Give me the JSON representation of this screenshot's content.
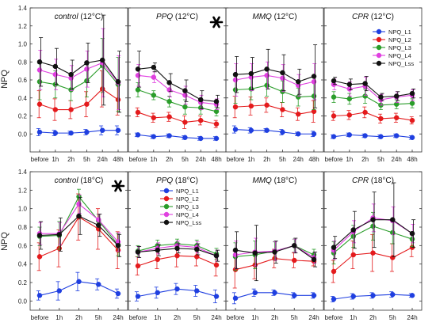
{
  "figure": {
    "ylabel": "NPQ",
    "legend_names": [
      "NPQ_L1",
      "NPQ_L2",
      "NPQ_L3",
      "NPQ_L4",
      "NPQ_Lss"
    ],
    "colors": {
      "NPQ_L1": "#1f3fe0",
      "NPQ_L2": "#e41a1c",
      "NPQ_L3": "#2a9d2a",
      "NPQ_L4": "#e040e0",
      "NPQ_Lss": "#111111"
    }
  },
  "chart_data": [
    {
      "type": "line",
      "row": 0,
      "col": 0,
      "title": "control",
      "title_italic": true,
      "title_suffix": " (12°C)",
      "asterisk": false,
      "categories": [
        "before",
        "1h",
        "2h",
        "5h",
        "24h",
        "48h"
      ],
      "yticks": [
        "0.0",
        "0.2",
        "0.4",
        "0.6",
        "0.8",
        "1.0",
        "1.2",
        "1.4"
      ],
      "ylim": [
        -0.2,
        1.4
      ],
      "legend": false,
      "series": [
        {
          "name": "NPQ_L1",
          "values": [
            0.02,
            0.01,
            0.01,
            0.02,
            0.04,
            0.04
          ],
          "errors": [
            0.04,
            0.03,
            0.02,
            0.03,
            0.05,
            0.05
          ]
        },
        {
          "name": "NPQ_L2",
          "values": [
            0.33,
            0.27,
            0.27,
            0.33,
            0.5,
            0.38
          ],
          "errors": [
            0.15,
            0.12,
            0.1,
            0.14,
            0.2,
            0.17
          ]
        },
        {
          "name": "NPQ_L3",
          "values": [
            0.58,
            0.55,
            0.49,
            0.59,
            0.76,
            0.55
          ],
          "errors": [
            0.2,
            0.15,
            0.12,
            0.18,
            0.3,
            0.3
          ]
        },
        {
          "name": "NPQ_L4",
          "values": [
            0.71,
            0.66,
            0.62,
            0.72,
            0.79,
            0.57
          ],
          "errors": [
            0.22,
            0.17,
            0.14,
            0.2,
            0.38,
            0.3
          ]
        },
        {
          "name": "NPQ_Lss",
          "values": [
            0.8,
            0.75,
            0.66,
            0.79,
            0.82,
            0.58
          ],
          "errors": [
            0.27,
            0.2,
            0.16,
            0.22,
            0.5,
            0.34
          ]
        }
      ]
    },
    {
      "type": "line",
      "row": 0,
      "col": 1,
      "title": "PPQ",
      "title_italic": true,
      "title_suffix": " (12°C)",
      "asterisk": true,
      "categories": [
        "before",
        "1h",
        "2h",
        "5h",
        "24h",
        "48h"
      ],
      "yticks": [
        "0.0",
        "0.2",
        "0.4",
        "0.6",
        "0.8",
        "1.0",
        "1.2",
        "1.4"
      ],
      "ylim": [
        -0.2,
        1.4
      ],
      "legend": false,
      "series": [
        {
          "name": "NPQ_L1",
          "values": [
            -0.01,
            -0.03,
            -0.02,
            -0.04,
            -0.05,
            -0.05
          ],
          "errors": [
            0.02,
            0.02,
            0.02,
            0.02,
            0.02,
            0.02
          ]
        },
        {
          "name": "NPQ_L2",
          "values": [
            0.24,
            0.18,
            0.19,
            0.13,
            0.15,
            0.11
          ],
          "errors": [
            0.05,
            0.05,
            0.05,
            0.07,
            0.05,
            0.04
          ]
        },
        {
          "name": "NPQ_L3",
          "values": [
            0.49,
            0.43,
            0.36,
            0.3,
            0.29,
            0.25
          ],
          "errors": [
            0.08,
            0.05,
            0.06,
            0.08,
            0.07,
            0.05
          ]
        },
        {
          "name": "NPQ_L4",
          "values": [
            0.65,
            0.63,
            0.49,
            0.43,
            0.35,
            0.33
          ],
          "errors": [
            0.12,
            0.06,
            0.08,
            0.1,
            0.08,
            0.06
          ]
        },
        {
          "name": "NPQ_Lss",
          "values": [
            0.72,
            0.74,
            0.57,
            0.48,
            0.38,
            0.36
          ],
          "errors": [
            0.2,
            0.05,
            0.1,
            0.12,
            0.1,
            0.07
          ]
        }
      ]
    },
    {
      "type": "line",
      "row": 0,
      "col": 2,
      "title": "MMQ",
      "title_italic": true,
      "title_suffix": " (12°C)",
      "asterisk": false,
      "categories": [
        "before",
        "1h",
        "2h",
        "5h",
        "24h",
        "48h"
      ],
      "yticks": [
        "0.0",
        "0.2",
        "0.4",
        "0.6",
        "0.8",
        "1.0",
        "1.2",
        "1.4"
      ],
      "ylim": [
        -0.2,
        1.4
      ],
      "legend": false,
      "series": [
        {
          "name": "NPQ_L1",
          "values": [
            0.05,
            0.04,
            0.04,
            0.02,
            0.0,
            0.0
          ],
          "errors": [
            0.04,
            0.03,
            0.02,
            0.03,
            0.02,
            0.03
          ]
        },
        {
          "name": "NPQ_L2",
          "values": [
            0.3,
            0.31,
            0.32,
            0.27,
            0.22,
            0.25
          ],
          "errors": [
            0.12,
            0.1,
            0.08,
            0.08,
            0.07,
            0.12
          ]
        },
        {
          "name": "NPQ_L3",
          "values": [
            0.49,
            0.5,
            0.54,
            0.47,
            0.41,
            0.42
          ],
          "errors": [
            0.15,
            0.12,
            0.12,
            0.12,
            0.1,
            0.15
          ]
        },
        {
          "name": "NPQ_L4",
          "values": [
            0.6,
            0.63,
            0.65,
            0.62,
            0.54,
            0.58
          ],
          "errors": [
            0.18,
            0.15,
            0.15,
            0.15,
            0.12,
            0.2
          ]
        },
        {
          "name": "NPQ_Lss",
          "values": [
            0.66,
            0.67,
            0.72,
            0.68,
            0.58,
            0.64
          ],
          "errors": [
            0.2,
            0.18,
            0.22,
            0.2,
            0.14,
            0.35
          ]
        }
      ]
    },
    {
      "type": "line",
      "row": 0,
      "col": 3,
      "title": "CPR",
      "title_italic": true,
      "title_suffix": " (12°C)",
      "asterisk": false,
      "categories": [
        "before",
        "1h",
        "2h",
        "5h",
        "24h",
        "48h"
      ],
      "yticks": [
        "0.0",
        "0.2",
        "0.4",
        "0.6",
        "0.8",
        "1.0",
        "1.2",
        "1.4"
      ],
      "ylim": [
        -0.2,
        1.4
      ],
      "legend": true,
      "series": [
        {
          "name": "NPQ_L1",
          "values": [
            -0.03,
            -0.01,
            -0.02,
            -0.03,
            -0.02,
            -0.04
          ],
          "errors": [
            0.02,
            0.02,
            0.02,
            0.02,
            0.02,
            0.02
          ]
        },
        {
          "name": "NPQ_L2",
          "values": [
            0.2,
            0.21,
            0.24,
            0.17,
            0.18,
            0.15
          ],
          "errors": [
            0.05,
            0.05,
            0.06,
            0.05,
            0.05,
            0.04
          ]
        },
        {
          "name": "NPQ_L3",
          "values": [
            0.41,
            0.39,
            0.42,
            0.32,
            0.33,
            0.34
          ],
          "errors": [
            0.06,
            0.06,
            0.08,
            0.05,
            0.05,
            0.05
          ]
        },
        {
          "name": "NPQ_L4",
          "values": [
            0.55,
            0.5,
            0.53,
            0.38,
            0.41,
            0.43
          ],
          "errors": [
            0.06,
            0.08,
            0.1,
            0.06,
            0.06,
            0.06
          ]
        },
        {
          "name": "NPQ_Lss",
          "values": [
            0.59,
            0.55,
            0.56,
            0.41,
            0.42,
            0.45
          ],
          "errors": [
            0.04,
            0.06,
            0.08,
            0.04,
            0.05,
            0.05
          ]
        }
      ]
    },
    {
      "type": "line",
      "row": 1,
      "col": 0,
      "title": "control",
      "title_italic": true,
      "title_suffix": " (18°C)",
      "asterisk": true,
      "categories": [
        "before",
        "1h",
        "2h",
        "5h",
        "24h"
      ],
      "yticks": [
        "0.0",
        "0.2",
        "0.4",
        "0.6",
        "0.8",
        "1.0",
        "1.2",
        "1.4"
      ],
      "ylim": [
        -0.1,
        1.4
      ],
      "legend": false,
      "series": [
        {
          "name": "NPQ_L1",
          "values": [
            0.06,
            0.11,
            0.21,
            0.18,
            0.08
          ],
          "errors": [
            0.05,
            0.1,
            0.1,
            0.06,
            0.05
          ]
        },
        {
          "name": "NPQ_L2",
          "values": [
            0.48,
            0.57,
            0.91,
            0.78,
            0.55
          ],
          "errors": [
            0.15,
            0.2,
            0.25,
            0.22,
            0.2
          ]
        },
        {
          "name": "NPQ_L3",
          "values": [
            0.7,
            0.71,
            1.13,
            0.87,
            0.61
          ],
          "errors": [
            0.1,
            0.15,
            0.08,
            0.07,
            0.12
          ]
        },
        {
          "name": "NPQ_L4",
          "values": [
            0.73,
            0.73,
            1.05,
            0.88,
            0.64
          ],
          "errors": [
            0.12,
            0.12,
            0.1,
            0.06,
            0.1
          ]
        },
        {
          "name": "NPQ_Lss",
          "values": [
            0.71,
            0.72,
            0.92,
            0.82,
            0.6
          ],
          "errors": [
            0.15,
            0.18,
            0.2,
            0.12,
            0.12
          ]
        }
      ]
    },
    {
      "type": "line",
      "row": 1,
      "col": 1,
      "title": "PPQ",
      "title_italic": true,
      "title_suffix": " (18°C)",
      "asterisk": false,
      "categories": [
        "before",
        "1h",
        "2h",
        "5h",
        "24h"
      ],
      "yticks": [
        "0.0",
        "0.2",
        "0.4",
        "0.6",
        "0.8",
        "1.0",
        "1.2",
        "1.4"
      ],
      "ylim": [
        -0.1,
        1.4
      ],
      "legend": true,
      "series": [
        {
          "name": "NPQ_L1",
          "values": [
            0.05,
            0.09,
            0.13,
            0.11,
            0.05
          ],
          "errors": [
            0.05,
            0.06,
            0.06,
            0.06,
            0.07
          ]
        },
        {
          "name": "NPQ_L2",
          "values": [
            0.38,
            0.45,
            0.49,
            0.48,
            0.39
          ],
          "errors": [
            0.1,
            0.1,
            0.12,
            0.1,
            0.12
          ]
        },
        {
          "name": "NPQ_L3",
          "values": [
            0.54,
            0.6,
            0.62,
            0.6,
            0.51
          ],
          "errors": [
            0.06,
            0.06,
            0.05,
            0.06,
            0.06
          ]
        },
        {
          "name": "NPQ_L4",
          "values": [
            0.53,
            0.57,
            0.6,
            0.58,
            0.49
          ],
          "errors": [
            0.06,
            0.06,
            0.05,
            0.06,
            0.06
          ]
        },
        {
          "name": "NPQ_Lss",
          "values": [
            0.53,
            0.55,
            0.57,
            0.56,
            0.49
          ],
          "errors": [
            0.06,
            0.06,
            0.05,
            0.06,
            0.06
          ]
        }
      ]
    },
    {
      "type": "line",
      "row": 1,
      "col": 2,
      "title": "MMQ",
      "title_italic": true,
      "title_suffix": " (18°C)",
      "asterisk": false,
      "categories": [
        "before",
        "1h",
        "2h",
        "5h",
        "24h"
      ],
      "yticks": [
        "0.0",
        "0.2",
        "0.4",
        "0.6",
        "0.8",
        "1.0",
        "1.2",
        "1.4"
      ],
      "ylim": [
        -0.1,
        1.4
      ],
      "legend": false,
      "series": [
        {
          "name": "NPQ_L1",
          "values": [
            0.03,
            0.09,
            0.09,
            0.06,
            0.06
          ],
          "errors": [
            0.06,
            0.04,
            0.03,
            0.03,
            0.03
          ]
        },
        {
          "name": "NPQ_L2",
          "values": [
            0.34,
            0.39,
            0.46,
            0.44,
            0.43
          ],
          "errors": [
            0.2,
            0.15,
            0.1,
            0.08,
            0.05
          ]
        },
        {
          "name": "NPQ_L3",
          "values": [
            0.48,
            0.5,
            0.54,
            0.6,
            0.5
          ],
          "errors": [
            0.15,
            0.15,
            0.1,
            0.07,
            0.06
          ]
        },
        {
          "name": "NPQ_L4",
          "values": [
            0.5,
            0.53,
            0.54,
            0.6,
            0.47
          ],
          "errors": [
            0.15,
            0.15,
            0.1,
            0.07,
            0.06
          ]
        },
        {
          "name": "NPQ_Lss",
          "values": [
            0.55,
            0.52,
            0.53,
            0.6,
            0.45
          ],
          "errors": [
            0.2,
            0.3,
            0.12,
            0.08,
            0.08
          ]
        }
      ]
    },
    {
      "type": "line",
      "row": 1,
      "col": 3,
      "title": "CPR",
      "title_italic": true,
      "title_suffix": " (18°C)",
      "asterisk": false,
      "categories": [
        "before",
        "1h",
        "2h",
        "5h",
        "24h"
      ],
      "yticks": [
        "0.0",
        "0.2",
        "0.4",
        "0.6",
        "0.8",
        "1.0",
        "1.2",
        "1.4"
      ],
      "ylim": [
        -0.1,
        1.4
      ],
      "legend": false,
      "series": [
        {
          "name": "NPQ_L1",
          "values": [
            0.02,
            0.05,
            0.06,
            0.07,
            0.06
          ],
          "errors": [
            0.03,
            0.03,
            0.03,
            0.03,
            0.02
          ]
        },
        {
          "name": "NPQ_L2",
          "values": [
            0.32,
            0.5,
            0.52,
            0.47,
            0.58
          ],
          "errors": [
            0.12,
            0.15,
            0.2,
            0.15,
            0.1
          ]
        },
        {
          "name": "NPQ_L3",
          "values": [
            0.52,
            0.7,
            0.81,
            0.74,
            0.67
          ],
          "errors": [
            0.12,
            0.12,
            0.15,
            0.12,
            0.08
          ]
        },
        {
          "name": "NPQ_L4",
          "values": [
            0.55,
            0.75,
            0.9,
            0.87,
            0.73
          ],
          "errors": [
            0.1,
            0.12,
            0.15,
            0.15,
            0.1
          ]
        },
        {
          "name": "NPQ_Lss",
          "values": [
            0.58,
            0.77,
            0.88,
            0.88,
            0.73
          ],
          "errors": [
            0.12,
            0.2,
            0.3,
            0.4,
            0.15
          ]
        }
      ]
    }
  ]
}
